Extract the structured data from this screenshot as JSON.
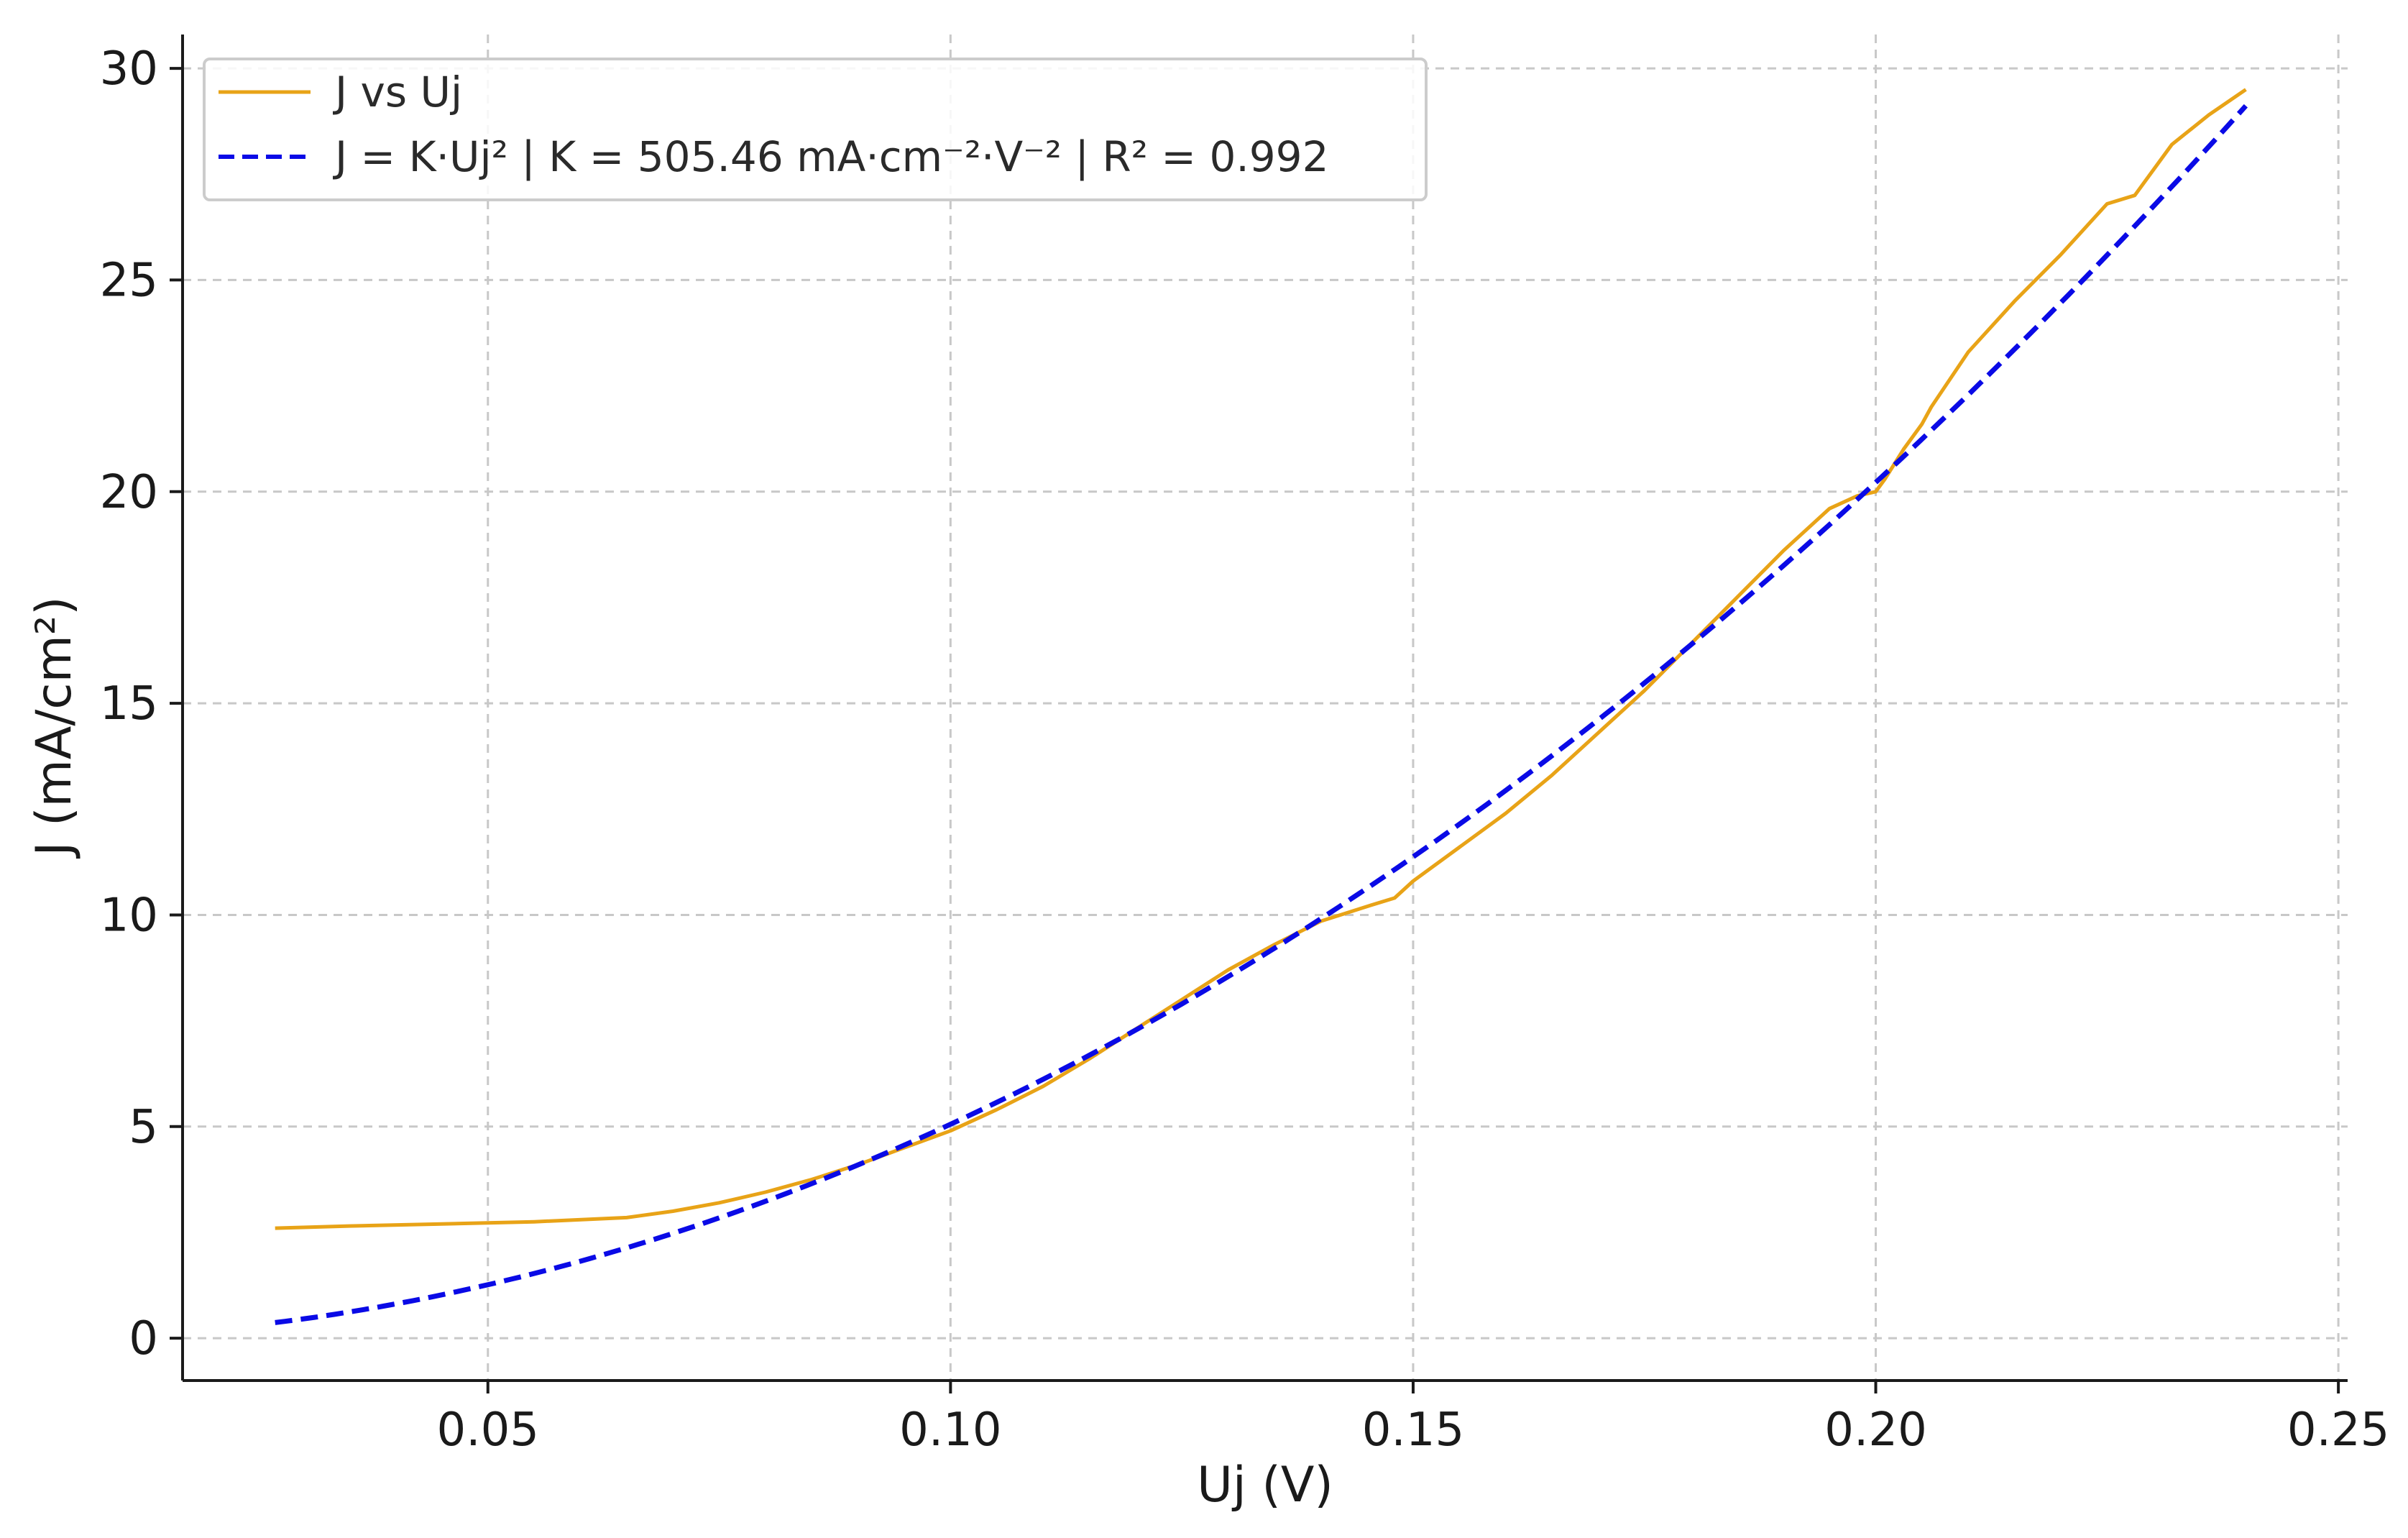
{
  "chart_data": {
    "type": "line",
    "xlabel": "Uj (V)",
    "ylabel": "J (mA/cm²)",
    "xlim": [
      0.017,
      0.251
    ],
    "ylim": [
      -1.0,
      30.8
    ],
    "xticks": [
      0.05,
      0.1,
      0.15,
      0.2,
      0.25
    ],
    "xtick_labels": [
      "0.05",
      "0.10",
      "0.15",
      "0.20",
      "0.25"
    ],
    "yticks": [
      0,
      5,
      10,
      15,
      20,
      25,
      30
    ],
    "ytick_labels": [
      "0",
      "5",
      "10",
      "15",
      "20",
      "25",
      "30"
    ],
    "grid": true,
    "legend_position": "upper-left",
    "series": [
      {
        "name": "J vs Uj",
        "color": "#e8a317",
        "style": "solid",
        "x": [
          0.027,
          0.035,
          0.045,
          0.055,
          0.065,
          0.07,
          0.075,
          0.08,
          0.085,
          0.09,
          0.095,
          0.1,
          0.105,
          0.11,
          0.115,
          0.12,
          0.125,
          0.13,
          0.135,
          0.14,
          0.145,
          0.148,
          0.15,
          0.155,
          0.16,
          0.165,
          0.17,
          0.175,
          0.18,
          0.185,
          0.19,
          0.195,
          0.198,
          0.2,
          0.201,
          0.203,
          0.205,
          0.206,
          0.21,
          0.215,
          0.22,
          0.225,
          0.228,
          0.232,
          0.236,
          0.24
        ],
        "y": [
          2.6,
          2.65,
          2.7,
          2.75,
          2.85,
          3.0,
          3.2,
          3.45,
          3.75,
          4.1,
          4.5,
          4.9,
          5.4,
          5.95,
          6.6,
          7.3,
          8.0,
          8.7,
          9.3,
          9.85,
          10.2,
          10.4,
          10.8,
          11.6,
          12.4,
          13.3,
          14.3,
          15.3,
          16.4,
          17.5,
          18.6,
          19.6,
          19.9,
          20.0,
          20.3,
          21.0,
          21.6,
          22.0,
          23.3,
          24.5,
          25.6,
          26.8,
          27.0,
          28.2,
          28.9,
          29.5
        ]
      },
      {
        "name": "J = K·Uj²  |  K = 505.46 mA·cm⁻²·V⁻²  |  R² = 0.992",
        "color": "#0a0ae6",
        "style": "dashed",
        "model": "K*x^2",
        "K": 505.46,
        "x_range": [
          0.027,
          0.24
        ]
      }
    ]
  }
}
